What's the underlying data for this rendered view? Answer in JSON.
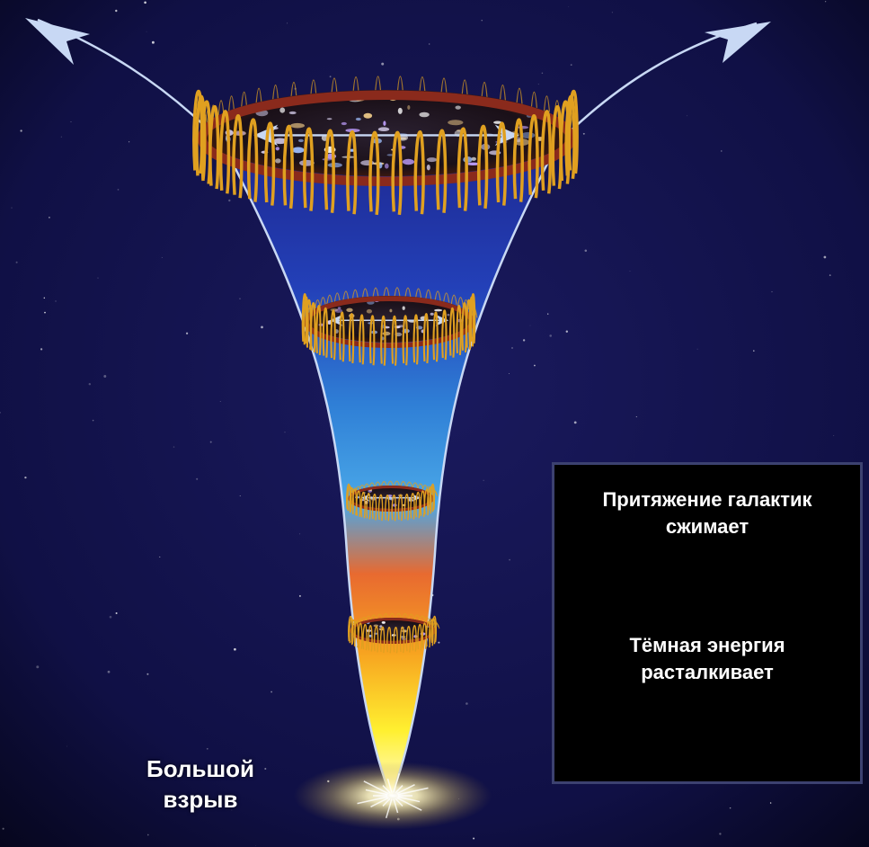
{
  "diagram": {
    "big_bang_label": [
      "Большой",
      "взрыв"
    ],
    "legend": {
      "gravity_text": [
        "Притяжение галактик",
        "сжимает"
      ],
      "dark_energy_text": [
        "Тёмная энергия",
        "расталкивает"
      ]
    },
    "colors": {
      "background": "#0d0c3a",
      "ring": "#8a2a1c",
      "spring": "#e0a020",
      "arrow": "#c8d8f4",
      "funnel_top": "#1e2a8c",
      "funnel_mid": "#3aa0e0",
      "funnel_hot": "#f07a20",
      "funnel_core": "#ffe830"
    }
  }
}
